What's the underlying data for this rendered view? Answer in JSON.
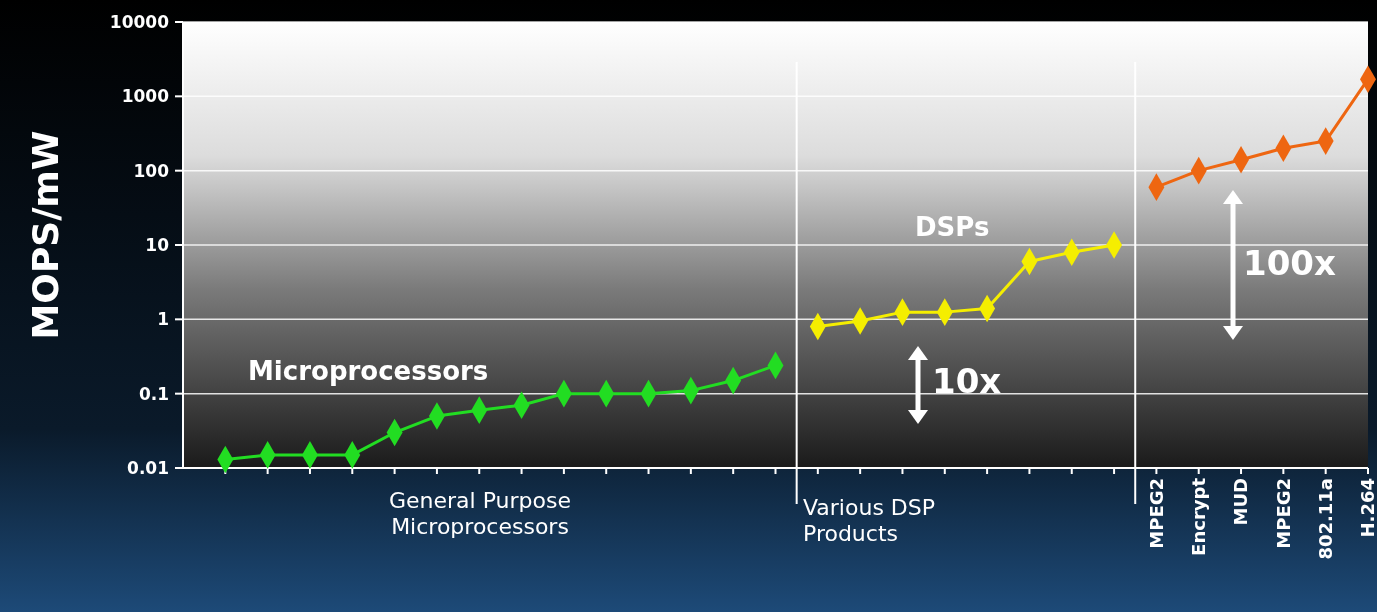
{
  "chart_data": {
    "type": "line",
    "ylabel": "MOPS/mW",
    "log": "y",
    "ylim": [
      0.01,
      10000
    ],
    "yticks": [
      0.01,
      0.1,
      1,
      10,
      100,
      1000,
      10000
    ],
    "categories": [
      null,
      null,
      null,
      null,
      null,
      null,
      null,
      null,
      null,
      null,
      null,
      null,
      null,
      null,
      null,
      null,
      null,
      null,
      null,
      null,
      null,
      null,
      "MPEG2",
      "Encrypt",
      "MUD",
      "MPEG2",
      "802.11a",
      "H.264"
    ],
    "grid": "y",
    "marker": "diamond",
    "line_style": "solid",
    "series": [
      {
        "name": "Microprocessors",
        "color": "#22dd22",
        "values": [
          0.013,
          0.015,
          0.015,
          0.015,
          0.03,
          0.05,
          0.06,
          0.07,
          0.1,
          0.1,
          0.1,
          0.11,
          0.15,
          0.24,
          null,
          null,
          null,
          null,
          null,
          null,
          null,
          null,
          null,
          null,
          null,
          null,
          null,
          null
        ]
      },
      {
        "name": "DSPs",
        "color": "#f5ee00",
        "values": [
          null,
          null,
          null,
          null,
          null,
          null,
          null,
          null,
          null,
          null,
          null,
          null,
          null,
          null,
          0.8,
          0.95,
          1.25,
          1.25,
          1.4,
          6,
          8,
          10,
          null,
          null,
          null,
          null,
          null,
          null
        ]
      },
      {
        "color": "#ee6611",
        "values": [
          null,
          null,
          null,
          null,
          null,
          null,
          null,
          null,
          null,
          null,
          null,
          null,
          null,
          null,
          null,
          null,
          null,
          null,
          null,
          null,
          null,
          null,
          60,
          100,
          140,
          200,
          250,
          1700
        ]
      }
    ],
    "annotations": [
      "General Purpose Microprocessors",
      "Various DSP Products",
      "10x",
      "100x"
    ]
  }
}
